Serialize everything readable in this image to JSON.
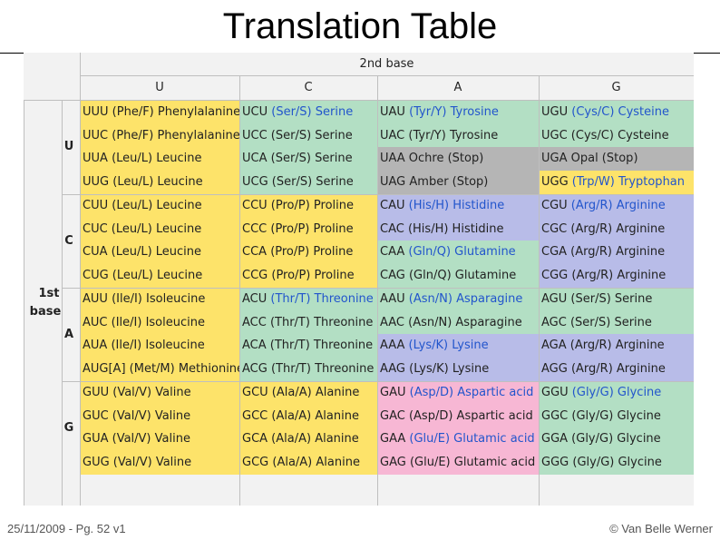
{
  "title": "Translation Table",
  "header": {
    "second_base": "2nd base",
    "first_base_line1": "1st",
    "first_base_line2": "base"
  },
  "columns": [
    "U",
    "C",
    "A",
    "G"
  ],
  "rows_first_base": [
    "U",
    "C",
    "A",
    "G"
  ],
  "colors": {
    "yellow": "#fde36a",
    "green": "#b3dfc4",
    "gray": "#b5b5b5",
    "blue": "#b8bce8",
    "pink": "#f7b7d4"
  },
  "cells": [
    [
      {
        "codon": "UUU",
        "aa": " (Phe/F) Phenylalanine",
        "color": "yellow"
      },
      {
        "codon": "UCU",
        "aa": " (Ser/S) Serine",
        "color": "green",
        "blue": true
      },
      {
        "codon": "UAU",
        "aa": " (Tyr/Y) Tyrosine",
        "color": "green",
        "blue": true
      },
      {
        "codon": "UGU",
        "aa": " (Cys/C) Cysteine",
        "color": "green",
        "blue": true
      }
    ],
    [
      {
        "codon": "UUC",
        "aa": " (Phe/F) Phenylalanine",
        "color": "yellow"
      },
      {
        "codon": "UCC",
        "aa": " (Ser/S) Serine",
        "color": "green"
      },
      {
        "codon": "UAC",
        "aa": " (Tyr/Y) Tyrosine",
        "color": "green"
      },
      {
        "codon": "UGC",
        "aa": " (Cys/C) Cysteine",
        "color": "green"
      }
    ],
    [
      {
        "codon": "UUA",
        "aa": " (Leu/L) Leucine",
        "color": "yellow"
      },
      {
        "codon": "UCA",
        "aa": " (Ser/S) Serine",
        "color": "green"
      },
      {
        "codon": "UAA",
        "aa": " Ochre (Stop)",
        "color": "gray"
      },
      {
        "codon": "UGA",
        "aa": " Opal (Stop)",
        "color": "gray"
      }
    ],
    [
      {
        "codon": "UUG",
        "aa": " (Leu/L) Leucine",
        "color": "yellow"
      },
      {
        "codon": "UCG",
        "aa": " (Ser/S) Serine",
        "color": "green"
      },
      {
        "codon": "UAG",
        "aa": " Amber (Stop)",
        "color": "gray"
      },
      {
        "codon": "UGG",
        "aa": " (Trp/W) Tryptophan",
        "color": "yellow",
        "blue": true
      }
    ],
    [
      {
        "codon": "CUU",
        "aa": " (Leu/L) Leucine",
        "color": "yellow"
      },
      {
        "codon": "CCU",
        "aa": " (Pro/P) Proline",
        "color": "yellow"
      },
      {
        "codon": "CAU",
        "aa": " (His/H) Histidine",
        "color": "blue",
        "blue": true
      },
      {
        "codon": "CGU",
        "aa": " (Arg/R) Arginine",
        "color": "blue",
        "blue": true
      }
    ],
    [
      {
        "codon": "CUC",
        "aa": " (Leu/L) Leucine",
        "color": "yellow"
      },
      {
        "codon": "CCC",
        "aa": " (Pro/P) Proline",
        "color": "yellow"
      },
      {
        "codon": "CAC",
        "aa": " (His/H) Histidine",
        "color": "blue"
      },
      {
        "codon": "CGC",
        "aa": " (Arg/R) Arginine",
        "color": "blue"
      }
    ],
    [
      {
        "codon": "CUA",
        "aa": " (Leu/L) Leucine",
        "color": "yellow"
      },
      {
        "codon": "CCA",
        "aa": " (Pro/P) Proline",
        "color": "yellow"
      },
      {
        "codon": "CAA",
        "aa": " (Gln/Q) Glutamine",
        "color": "green",
        "blue": true
      },
      {
        "codon": "CGA",
        "aa": " (Arg/R) Arginine",
        "color": "blue"
      }
    ],
    [
      {
        "codon": "CUG",
        "aa": " (Leu/L) Leucine",
        "color": "yellow"
      },
      {
        "codon": "CCG",
        "aa": " (Pro/P) Proline",
        "color": "yellow"
      },
      {
        "codon": "CAG",
        "aa": " (Gln/Q) Glutamine",
        "color": "green"
      },
      {
        "codon": "CGG",
        "aa": " (Arg/R) Arginine",
        "color": "blue"
      }
    ],
    [
      {
        "codon": "AUU",
        "aa": " (Ile/I) Isoleucine",
        "color": "yellow"
      },
      {
        "codon": "ACU",
        "aa": " (Thr/T) Threonine",
        "color": "green",
        "blue": true
      },
      {
        "codon": "AAU",
        "aa": " (Asn/N) Asparagine",
        "color": "green",
        "blue": true
      },
      {
        "codon": "AGU",
        "aa": " (Ser/S) Serine",
        "color": "green"
      }
    ],
    [
      {
        "codon": "AUC",
        "aa": " (Ile/I) Isoleucine",
        "color": "yellow"
      },
      {
        "codon": "ACC",
        "aa": " (Thr/T) Threonine",
        "color": "green"
      },
      {
        "codon": "AAC",
        "aa": " (Asn/N) Asparagine",
        "color": "green"
      },
      {
        "codon": "AGC",
        "aa": " (Ser/S) Serine",
        "color": "green"
      }
    ],
    [
      {
        "codon": "AUA",
        "aa": " (Ile/I) Isoleucine",
        "color": "yellow"
      },
      {
        "codon": "ACA",
        "aa": " (Thr/T) Threonine",
        "color": "green"
      },
      {
        "codon": "AAA",
        "aa": " (Lys/K) Lysine",
        "color": "blue",
        "blue": true
      },
      {
        "codon": "AGA",
        "aa": " (Arg/R) Arginine",
        "color": "blue"
      }
    ],
    [
      {
        "codon": "AUG",
        "aa": "[A] (Met/M) Methionine",
        "color": "yellow"
      },
      {
        "codon": "ACG",
        "aa": " (Thr/T) Threonine",
        "color": "green"
      },
      {
        "codon": "AAG",
        "aa": " (Lys/K) Lysine",
        "color": "blue"
      },
      {
        "codon": "AGG",
        "aa": " (Arg/R) Arginine",
        "color": "blue"
      }
    ],
    [
      {
        "codon": "GUU",
        "aa": " (Val/V) Valine",
        "color": "yellow"
      },
      {
        "codon": "GCU",
        "aa": " (Ala/A) Alanine",
        "color": "yellow"
      },
      {
        "codon": "GAU",
        "aa": " (Asp/D) Aspartic acid",
        "color": "pink",
        "blue": true
      },
      {
        "codon": "GGU",
        "aa": " (Gly/G) Glycine",
        "color": "green",
        "blue": true
      }
    ],
    [
      {
        "codon": "GUC",
        "aa": " (Val/V) Valine",
        "color": "yellow"
      },
      {
        "codon": "GCC",
        "aa": " (Ala/A) Alanine",
        "color": "yellow"
      },
      {
        "codon": "GAC",
        "aa": " (Asp/D) Aspartic acid",
        "color": "pink"
      },
      {
        "codon": "GGC",
        "aa": " (Gly/G) Glycine",
        "color": "green"
      }
    ],
    [
      {
        "codon": "GUA",
        "aa": " (Val/V) Valine",
        "color": "yellow"
      },
      {
        "codon": "GCA",
        "aa": " (Ala/A) Alanine",
        "color": "yellow"
      },
      {
        "codon": "GAA",
        "aa": " (Glu/E) Glutamic acid",
        "color": "pink",
        "blue": true
      },
      {
        "codon": "GGA",
        "aa": " (Gly/G) Glycine",
        "color": "green"
      }
    ],
    [
      {
        "codon": "GUG",
        "aa": " (Val/V) Valine",
        "color": "yellow"
      },
      {
        "codon": "GCG",
        "aa": " (Ala/A) Alanine",
        "color": "yellow"
      },
      {
        "codon": "GAG",
        "aa": " (Glu/E) Glutamic acid",
        "color": "pink"
      },
      {
        "codon": "GGG",
        "aa": " (Gly/G) Glycine",
        "color": "green"
      }
    ]
  ],
  "footer": {
    "left": "25/11/2009 - Pg. 52 v1",
    "right": "© Van Belle Werner"
  }
}
